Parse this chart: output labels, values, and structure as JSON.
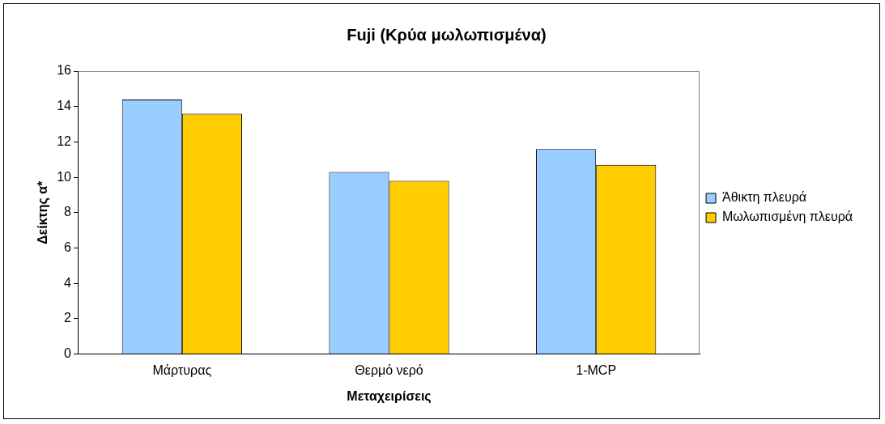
{
  "chart_data": {
    "type": "bar",
    "title": "Fuji (Κρύα μωλωπισμένα)",
    "xlabel": "Μεταχειρίσεις",
    "ylabel": "Δείκτης α*",
    "categories": [
      "Μάρτυρας",
      "Θερμό νερό",
      "1-MCP"
    ],
    "series": [
      {
        "name": "Άθικτη πλευρά",
        "color": "#99ccff",
        "values": [
          14.4,
          10.3,
          11.6
        ]
      },
      {
        "name": "Μωλωπισμένη πλευρά",
        "color": "#ffcc00",
        "values": [
          13.6,
          9.8,
          10.7
        ]
      }
    ],
    "ylim": [
      0,
      16
    ],
    "yticks": [
      0,
      2,
      4,
      6,
      8,
      10,
      12,
      14,
      16
    ],
    "grid": false,
    "legend": "right"
  }
}
